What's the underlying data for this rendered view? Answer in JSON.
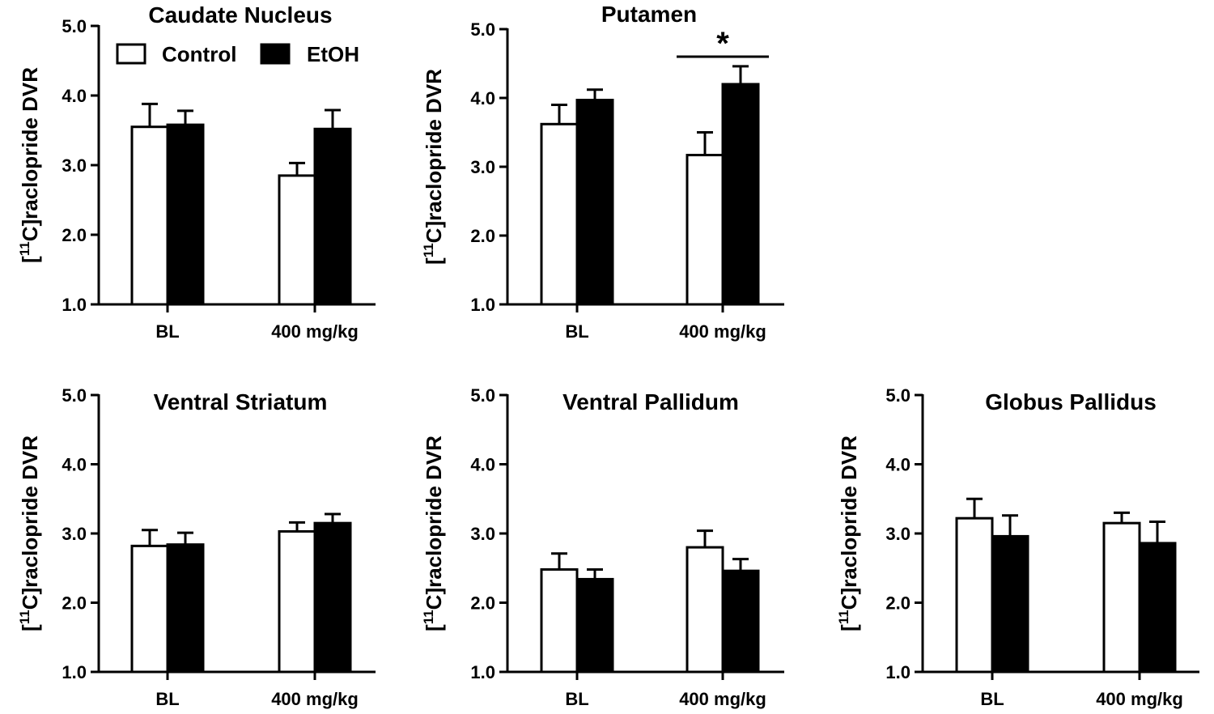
{
  "legend": {
    "placement": "top-left of first panel",
    "entries": [
      {
        "label": "Control",
        "fill": "#ffffff"
      },
      {
        "label": "EtOH",
        "fill": "#000000"
      }
    ]
  },
  "colors": {
    "control": "#ffffff",
    "etoh": "#000000",
    "axis": "#000000"
  },
  "chart_data": [
    {
      "type": "bar",
      "title": "Caudate Nucleus",
      "ylabel_prefix": "[",
      "ylabel_sup": "11",
      "ylabel_rest": "C]raclopride DVR",
      "ylim": [
        1.0,
        5.0
      ],
      "yticks": [
        "1.0",
        "2.0",
        "3.0",
        "4.0",
        "5.0"
      ],
      "categories": [
        "BL",
        "400 mg/kg"
      ],
      "series": [
        {
          "name": "Control",
          "values": [
            3.55,
            2.85
          ],
          "errors": [
            0.33,
            0.18
          ]
        },
        {
          "name": "EtOH",
          "values": [
            3.58,
            3.52
          ],
          "errors": [
            0.2,
            0.27
          ]
        }
      ],
      "annotations": []
    },
    {
      "type": "bar",
      "title": "Putamen",
      "ylabel_prefix": "[",
      "ylabel_sup": "11",
      "ylabel_rest": "C]raclopride DVR",
      "ylim": [
        1.0,
        5.0
      ],
      "yticks": [
        "1.0",
        "2.0",
        "3.0",
        "4.0",
        "5.0"
      ],
      "categories": [
        "BL",
        "400 mg/kg"
      ],
      "series": [
        {
          "name": "Control",
          "values": [
            3.62,
            3.17
          ],
          "errors": [
            0.28,
            0.33
          ]
        },
        {
          "name": "EtOH",
          "values": [
            3.97,
            4.2
          ],
          "errors": [
            0.15,
            0.26
          ]
        }
      ],
      "annotations": [
        {
          "text": "*",
          "category": 1,
          "y": 4.6
        }
      ]
    },
    {
      "type": "bar",
      "title": "Ventral Striatum",
      "ylabel_prefix": "[",
      "ylabel_sup": "11",
      "ylabel_rest": "C]raclopride DVR",
      "ylim": [
        1.0,
        5.0
      ],
      "yticks": [
        "1.0",
        "2.0",
        "3.0",
        "4.0",
        "5.0"
      ],
      "categories": [
        "BL",
        "400 mg/kg"
      ],
      "series": [
        {
          "name": "Control",
          "values": [
            2.82,
            3.03
          ],
          "errors": [
            0.23,
            0.13
          ]
        },
        {
          "name": "EtOH",
          "values": [
            2.84,
            3.15
          ],
          "errors": [
            0.17,
            0.13
          ]
        }
      ],
      "annotations": []
    },
    {
      "type": "bar",
      "title": "Ventral Pallidum",
      "ylabel_prefix": "[",
      "ylabel_sup": "11",
      "ylabel_rest": "C]raclopride DVR",
      "ylim": [
        1.0,
        5.0
      ],
      "yticks": [
        "1.0",
        "2.0",
        "3.0",
        "4.0",
        "5.0"
      ],
      "categories": [
        "BL",
        "400 mg/kg"
      ],
      "series": [
        {
          "name": "Control",
          "values": [
            2.48,
            2.8
          ],
          "errors": [
            0.23,
            0.24
          ]
        },
        {
          "name": "EtOH",
          "values": [
            2.34,
            2.46
          ],
          "errors": [
            0.14,
            0.17
          ]
        }
      ],
      "annotations": []
    },
    {
      "type": "bar",
      "title": "Globus Pallidus",
      "ylabel_prefix": "[",
      "ylabel_sup": "11",
      "ylabel_rest": "C]raclopride DVR",
      "ylim": [
        1.0,
        5.0
      ],
      "yticks": [
        "1.0",
        "2.0",
        "3.0",
        "4.0",
        "5.0"
      ],
      "categories": [
        "BL",
        "400 mg/kg"
      ],
      "series": [
        {
          "name": "Control",
          "values": [
            3.22,
            3.15
          ],
          "errors": [
            0.28,
            0.15
          ]
        },
        {
          "name": "EtOH",
          "values": [
            2.96,
            2.86
          ],
          "errors": [
            0.3,
            0.31
          ]
        }
      ],
      "annotations": []
    }
  ]
}
